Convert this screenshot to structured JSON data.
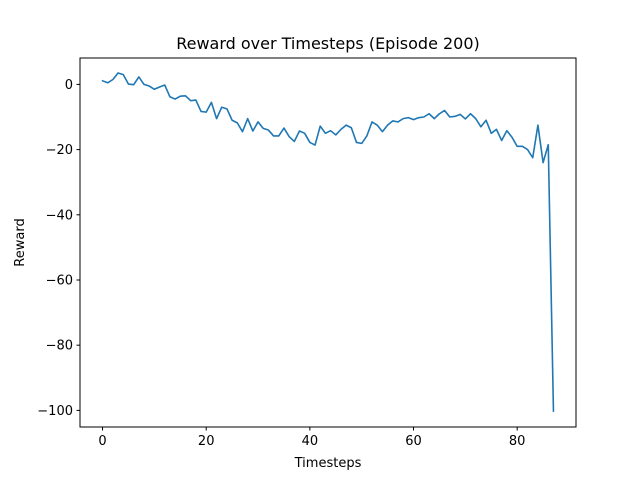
{
  "chart_data": {
    "type": "line",
    "title": "Reward over Timesteps (Episode 200)",
    "xlabel": "Timesteps",
    "ylabel": "Reward",
    "xlim": [
      -4.35,
      91.35
    ],
    "ylim": [
      -105.1,
      8.1
    ],
    "xticks": [
      0,
      20,
      40,
      60,
      80
    ],
    "yticks": [
      0,
      -20,
      -40,
      -60,
      -80,
      -100
    ],
    "ytick_labels": [
      "0",
      "−20",
      "−40",
      "−60",
      "−80",
      "−100"
    ],
    "grid": false,
    "legend": "none",
    "series": [
      {
        "color": "#1f77b4",
        "x": [
          0,
          1,
          2,
          3,
          4,
          5,
          6,
          7,
          8,
          9,
          10,
          11,
          12,
          13,
          14,
          15,
          16,
          17,
          18,
          19,
          20,
          21,
          22,
          23,
          24,
          25,
          26,
          27,
          28,
          29,
          30,
          31,
          32,
          33,
          34,
          35,
          36,
          37,
          38,
          39,
          40,
          41,
          42,
          43,
          44,
          45,
          46,
          47,
          48,
          49,
          50,
          51,
          52,
          53,
          54,
          55,
          56,
          57,
          58,
          59,
          60,
          61,
          62,
          63,
          64,
          65,
          66,
          67,
          68,
          69,
          70,
          71,
          72,
          73,
          74,
          75,
          76,
          77,
          78,
          79,
          80,
          81,
          82,
          83,
          84,
          85,
          86,
          87
        ],
        "values": [
          1.1,
          0.5,
          1.5,
          3.5,
          3.0,
          0.1,
          -0.1,
          2.3,
          0.0,
          -0.5,
          -1.5,
          -0.8,
          -0.2,
          -3.8,
          -4.5,
          -3.6,
          -3.5,
          -5.0,
          -4.8,
          -8.3,
          -8.5,
          -5.5,
          -10.5,
          -7.0,
          -7.5,
          -11.0,
          -11.8,
          -14.5,
          -10.5,
          -14.3,
          -11.5,
          -13.5,
          -14.0,
          -15.8,
          -15.8,
          -13.4,
          -16.0,
          -17.5,
          -14.3,
          -15.0,
          -17.8,
          -18.6,
          -12.8,
          -15.0,
          -14.2,
          -15.5,
          -13.8,
          -12.5,
          -13.3,
          -17.8,
          -18.1,
          -15.8,
          -11.5,
          -12.5,
          -14.5,
          -12.5,
          -11.2,
          -11.5,
          -10.5,
          -10.2,
          -10.8,
          -10.2,
          -10.0,
          -9.0,
          -10.5,
          -9.0,
          -8.0,
          -10.0,
          -9.8,
          -9.2,
          -10.6,
          -9.0,
          -10.5,
          -13.0,
          -11.0,
          -15.0,
          -13.8,
          -17.2,
          -14.2,
          -16.2,
          -19.0,
          -19.0,
          -20.0,
          -22.5,
          -12.5,
          -24.0,
          -18.5,
          -100.2
        ]
      }
    ]
  }
}
